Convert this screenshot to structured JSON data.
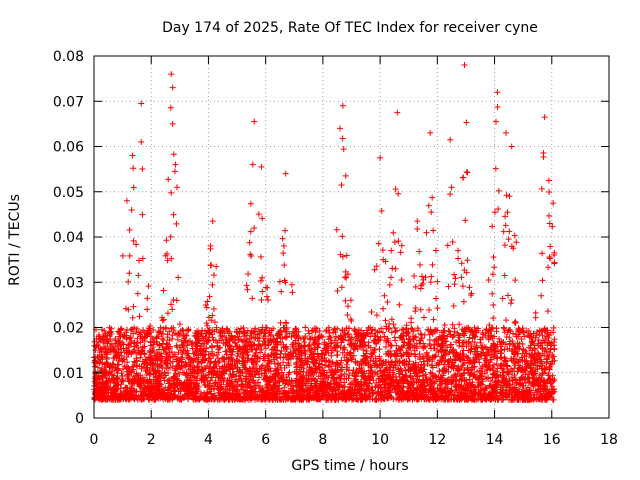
{
  "chart_data": {
    "type": "scatter",
    "title": "Day 174 of 2025, Rate Of TEC Index for receiver cyne",
    "xlabel": "GPS time / hours",
    "ylabel": "ROTI / TECUs",
    "xlim": [
      0,
      18
    ],
    "ylim": [
      0,
      0.08
    ],
    "x_ticks": [
      0,
      2,
      4,
      6,
      8,
      10,
      12,
      14,
      16,
      18
    ],
    "y_ticks": [
      0,
      0.01,
      0.02,
      0.03,
      0.04,
      0.05,
      0.06,
      0.07,
      0.08
    ],
    "x_tick_labels": [
      "0",
      "2",
      "4",
      "6",
      "8",
      "10",
      "12",
      "14",
      "16",
      "18"
    ],
    "y_tick_labels": [
      "0",
      "0.01",
      "0.02",
      "0.03",
      "0.04",
      "0.05",
      "0.06",
      "0.07",
      "0.08"
    ],
    "grid": true,
    "marker": "+",
    "color": "#ff0000",
    "data_x_range": [
      0,
      16.1
    ],
    "notable_points": [
      {
        "x": 12.95,
        "y": 0.078
      },
      {
        "x": 2.7,
        "y": 0.076
      },
      {
        "x": 2.75,
        "y": 0.073
      },
      {
        "x": 14.1,
        "y": 0.072
      },
      {
        "x": 1.65,
        "y": 0.0695
      },
      {
        "x": 8.7,
        "y": 0.069
      },
      {
        "x": 10.6,
        "y": 0.0675
      },
      {
        "x": 15.75,
        "y": 0.0665
      },
      {
        "x": 5.6,
        "y": 0.0655
      },
      {
        "x": 14.05,
        "y": 0.0655
      },
      {
        "x": 2.75,
        "y": 0.065
      },
      {
        "x": 8.6,
        "y": 0.064
      },
      {
        "x": 11.75,
        "y": 0.063
      },
      {
        "x": 14.4,
        "y": 0.063
      },
      {
        "x": 1.65,
        "y": 0.061
      },
      {
        "x": 12.45,
        "y": 0.0615
      },
      {
        "x": 14.6,
        "y": 0.06
      },
      {
        "x": 1.35,
        "y": 0.058
      },
      {
        "x": 10.0,
        "y": 0.0575
      },
      {
        "x": 2.85,
        "y": 0.056
      },
      {
        "x": 5.55,
        "y": 0.056
      },
      {
        "x": 5.85,
        "y": 0.0555
      },
      {
        "x": 1.15,
        "y": 0.048
      },
      {
        "x": 6.7,
        "y": 0.054
      },
      {
        "x": 2.9,
        "y": 0.051
      },
      {
        "x": 8.65,
        "y": 0.0515
      },
      {
        "x": 4.15,
        "y": 0.0435
      },
      {
        "x": 11.3,
        "y": 0.0435
      },
      {
        "x": 15.9,
        "y": 0.0525
      },
      {
        "x": 16.05,
        "y": 0.0475
      }
    ]
  }
}
